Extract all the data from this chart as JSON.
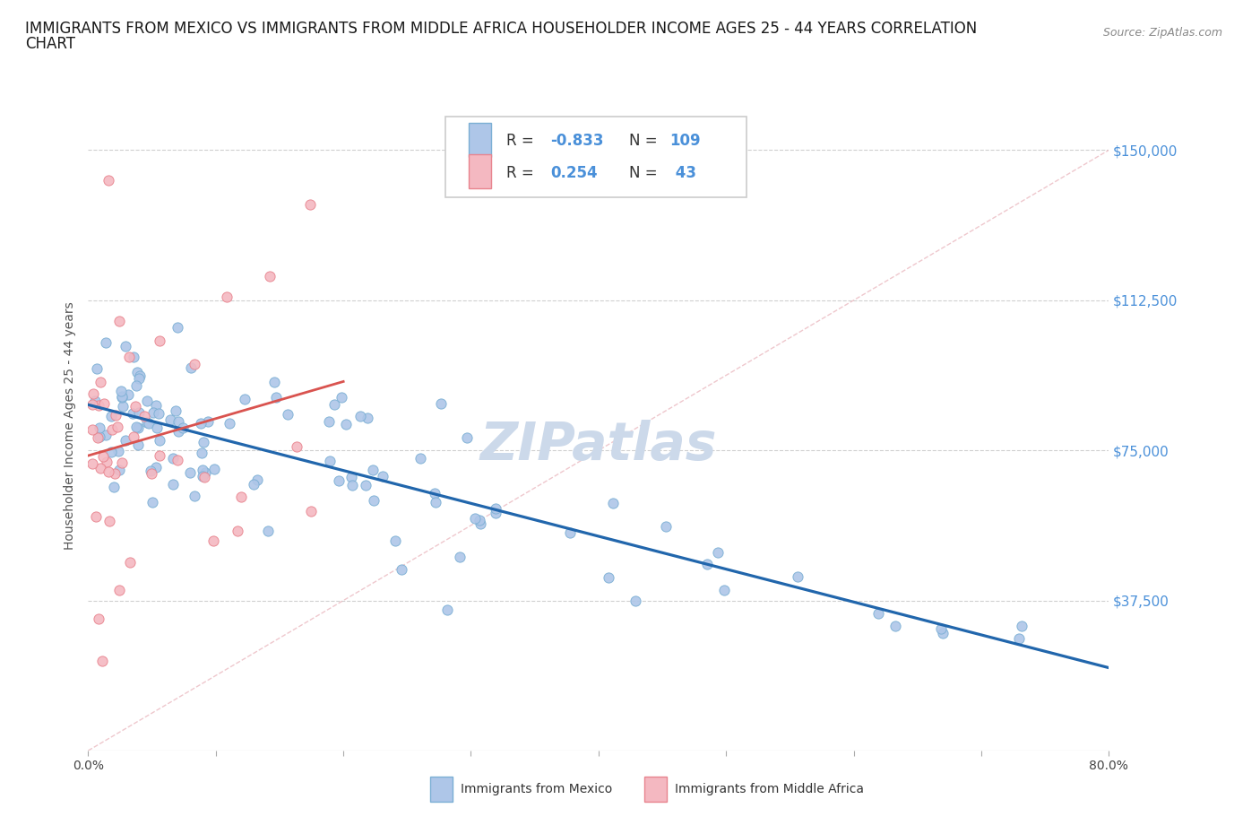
{
  "title_line1": "IMMIGRANTS FROM MEXICO VS IMMIGRANTS FROM MIDDLE AFRICA HOUSEHOLDER INCOME AGES 25 - 44 YEARS CORRELATION",
  "title_line2": "CHART",
  "source": "Source: ZipAtlas.com",
  "ylabel": "Householder Income Ages 25 - 44 years",
  "xlim": [
    0.0,
    0.8
  ],
  "ylim": [
    0,
    162500
  ],
  "yticks": [
    0,
    37500,
    75000,
    112500,
    150000
  ],
  "ytick_labels": [
    "",
    "$37,500",
    "$75,000",
    "$112,500",
    "$150,000"
  ],
  "xticks": [
    0.0,
    0.1,
    0.2,
    0.3,
    0.4,
    0.5,
    0.6,
    0.7,
    0.8
  ],
  "xtick_labels": [
    "0.0%",
    "",
    "",
    "",
    "",
    "",
    "",
    "",
    "80.0%"
  ],
  "mexico_dot_fill": "#aec6e8",
  "mexico_dot_edge": "#7bafd4",
  "africa_dot_fill": "#f4b8c1",
  "africa_dot_edge": "#e8848e",
  "trend_mexico_color": "#2166ac",
  "trend_africa_color": "#d9534f",
  "ref_line_color": "#d0d0d0",
  "mexico_R": -0.833,
  "mexico_N": 109,
  "africa_R": 0.254,
  "africa_N": 43,
  "watermark": "ZIPatlas",
  "legend_label_mexico": "Immigrants from Mexico",
  "legend_label_africa": "Immigrants from Middle Africa",
  "axis_tick_color": "#4a90d9",
  "title_fontsize": 12,
  "label_fontsize": 10,
  "tick_fontsize": 10,
  "watermark_color": "#ccd9ea",
  "watermark_fontsize": 42
}
